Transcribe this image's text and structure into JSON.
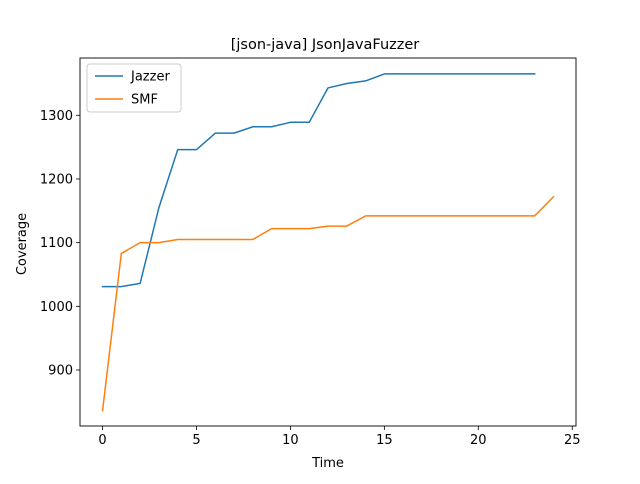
{
  "chart_data": {
    "type": "line",
    "title": "[json-java] JsonJavaFuzzer",
    "xlabel": "Time",
    "ylabel": "Coverage",
    "xlim": [
      -1.2,
      25.2
    ],
    "ylim": [
      812,
      1390
    ],
    "xticks": [
      0,
      5,
      10,
      15,
      20,
      25
    ],
    "yticks": [
      900,
      1000,
      1100,
      1200,
      1300
    ],
    "grid": false,
    "legend_position": "top-left",
    "series": [
      {
        "name": "Jazzer",
        "color": "#1f77b4",
        "x": [
          0,
          1,
          2,
          3,
          4,
          5,
          6,
          7,
          8,
          9,
          10,
          11,
          12,
          13,
          14,
          15,
          16,
          17,
          18,
          19,
          20,
          21,
          22,
          23
        ],
        "y": [
          1031,
          1031,
          1036,
          1155,
          1246,
          1246,
          1272,
          1272,
          1282,
          1282,
          1289,
          1289,
          1343,
          1350,
          1354,
          1365,
          1365,
          1365,
          1365,
          1365,
          1365,
          1365,
          1365,
          1365
        ]
      },
      {
        "name": "SMF",
        "color": "#ff7f0e",
        "x": [
          0,
          1,
          2,
          3,
          4,
          5,
          6,
          7,
          8,
          9,
          10,
          11,
          12,
          13,
          14,
          15,
          16,
          17,
          18,
          19,
          20,
          21,
          22,
          23,
          24
        ],
        "y": [
          836,
          1083,
          1100,
          1100,
          1105,
          1105,
          1105,
          1105,
          1105,
          1122,
          1122,
          1122,
          1126,
          1126,
          1142,
          1142,
          1142,
          1142,
          1142,
          1142,
          1142,
          1142,
          1142,
          1142,
          1172
        ]
      }
    ]
  }
}
